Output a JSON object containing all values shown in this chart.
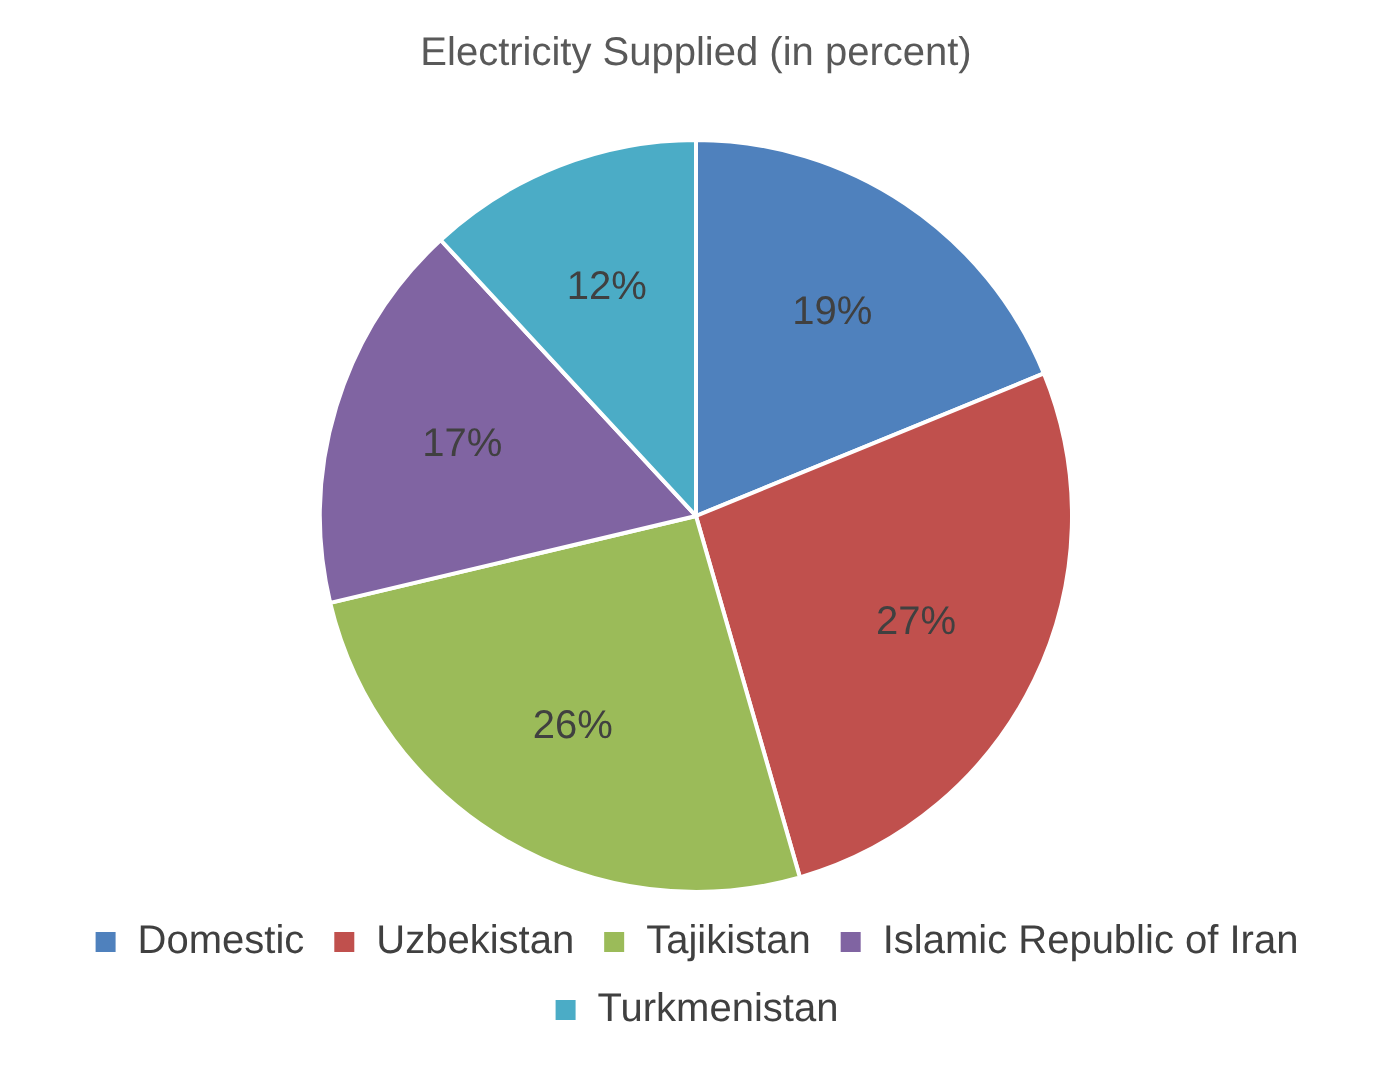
{
  "chart_data": {
    "type": "pie",
    "title": "Electricity Supplied (in percent)",
    "categories": [
      "Domestic",
      "Uzbekistan",
      "Tajikistan",
      "Islamic Republic of Iran",
      "Turkmenistan"
    ],
    "values": [
      19,
      27,
      26,
      17,
      12
    ],
    "colors": [
      "#4f81bd",
      "#c0504d",
      "#9bbb59",
      "#8064a2",
      "#4bacc6"
    ],
    "value_labels": [
      "19%",
      "27%",
      "26%",
      "17%",
      "12%"
    ],
    "legend": "bottom"
  }
}
